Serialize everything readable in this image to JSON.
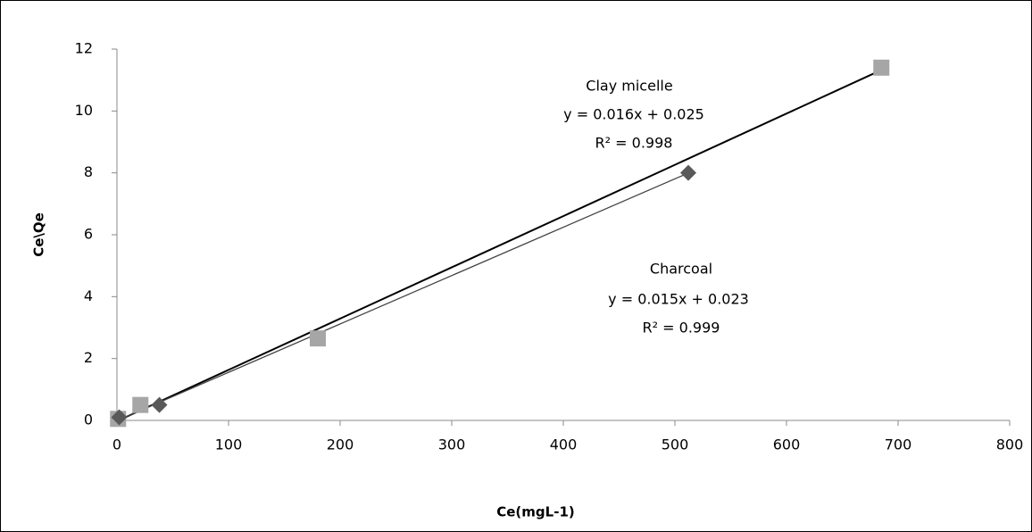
{
  "chart_data": {
    "type": "scatter",
    "x_label": "Ce(mgL-1)",
    "y_label": "Ce\\Qe",
    "xlim": [
      0,
      800
    ],
    "xticks": [
      0,
      100,
      200,
      300,
      400,
      500,
      600,
      700,
      800
    ],
    "ylim": [
      0,
      12
    ],
    "yticks": [
      0,
      2,
      4,
      6,
      8,
      10,
      12
    ],
    "grid": false,
    "trendline": true,
    "series": [
      {
        "name": "Clay micelle",
        "color": "#a6a6a6",
        "marker": "square",
        "x": [
          1,
          21,
          180,
          685
        ],
        "values": [
          0.05,
          0.5,
          2.65,
          11.4
        ],
        "equation": "y = 0.016x + 0.025",
        "r2_label": "R² = 0.998"
      },
      {
        "name": "Charcoal",
        "color": "#595959",
        "marker": "diamond",
        "x": [
          2,
          38,
          512
        ],
        "values": [
          0.1,
          0.5,
          8.0
        ],
        "equation": "y = 0.015x + 0.023",
        "r2_label": "R² = 0.999"
      }
    ]
  }
}
